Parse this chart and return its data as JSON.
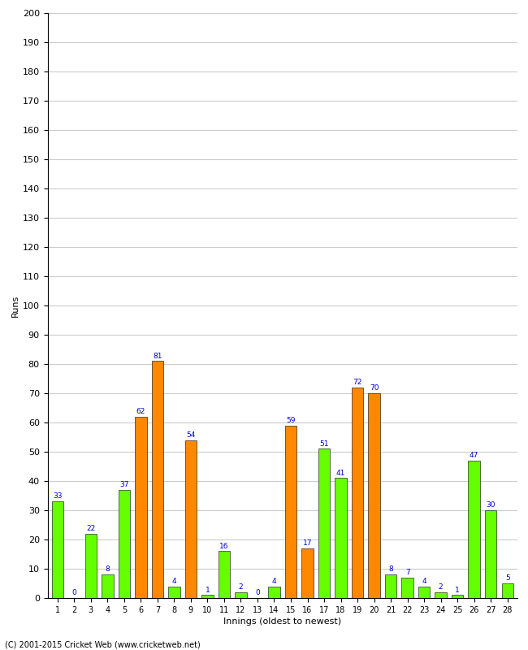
{
  "xlabel": "Innings (oldest to newest)",
  "ylabel": "Runs",
  "ylim": [
    0,
    200
  ],
  "yticks": [
    0,
    10,
    20,
    30,
    40,
    50,
    60,
    70,
    80,
    90,
    100,
    110,
    120,
    130,
    140,
    150,
    160,
    170,
    180,
    190,
    200
  ],
  "innings": [
    1,
    2,
    3,
    4,
    5,
    6,
    7,
    8,
    9,
    10,
    11,
    12,
    13,
    14,
    15,
    16,
    17,
    18,
    19,
    20,
    21,
    22,
    23,
    24,
    25,
    26,
    27,
    28
  ],
  "values": [
    33,
    0,
    22,
    8,
    37,
    62,
    81,
    4,
    54,
    1,
    16,
    2,
    0,
    4,
    59,
    17,
    51,
    41,
    72,
    70,
    8,
    7,
    4,
    2,
    1,
    47,
    30,
    5
  ],
  "colors": [
    "#66ff00",
    "#ff8800",
    "#66ff00",
    "#66ff00",
    "#66ff00",
    "#ff8800",
    "#ff8800",
    "#66ff00",
    "#ff8800",
    "#66ff00",
    "#66ff00",
    "#66ff00",
    "#66ff00",
    "#66ff00",
    "#ff8800",
    "#ff8800",
    "#66ff00",
    "#66ff00",
    "#ff8800",
    "#ff8800",
    "#66ff00",
    "#66ff00",
    "#66ff00",
    "#66ff00",
    "#66ff00",
    "#66ff00",
    "#66ff00",
    "#66ff00"
  ],
  "label_color": "#0000cc",
  "background_color": "#ffffff",
  "grid_color": "#cccccc",
  "footer": "(C) 2001-2015 Cricket Web (www.cricketweb.net)"
}
